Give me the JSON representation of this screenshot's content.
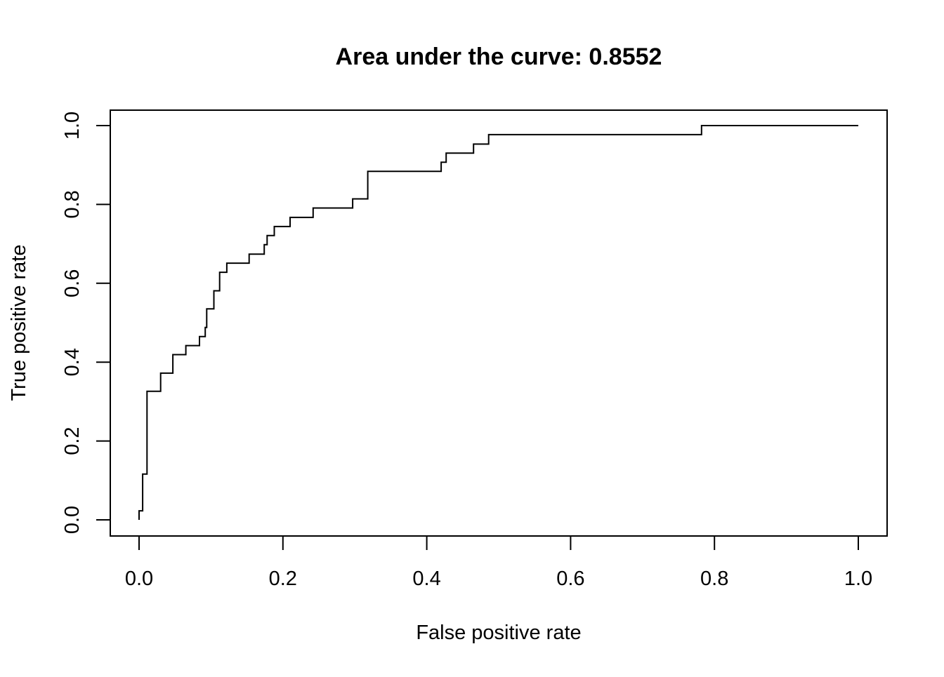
{
  "chart_data": {
    "type": "line",
    "title": "Area under the curve: 0.8552",
    "xlabel": "False positive rate",
    "ylabel": "True positive rate",
    "xlim": [
      0.0,
      1.0
    ],
    "ylim": [
      0.0,
      1.0
    ],
    "x_ticks": [
      "0.0",
      "0.2",
      "0.4",
      "0.6",
      "0.8",
      "1.0"
    ],
    "y_ticks": [
      "0.0",
      "0.2",
      "0.4",
      "0.6",
      "0.8",
      "1.0"
    ],
    "grid": false,
    "line_color": "#000000",
    "series": [
      {
        "step": true,
        "x": [
          0.0,
          0.0,
          0.003,
          0.003,
          0.005,
          0.005,
          0.011,
          0.011,
          0.03,
          0.03,
          0.047,
          0.047,
          0.065,
          0.065,
          0.084,
          0.084,
          0.092,
          0.092,
          0.094,
          0.094,
          0.104,
          0.104,
          0.112,
          0.112,
          0.122,
          0.122,
          0.153,
          0.153,
          0.174,
          0.174,
          0.178,
          0.178,
          0.188,
          0.188,
          0.21,
          0.21,
          0.242,
          0.242,
          0.297,
          0.297,
          0.318,
          0.318,
          0.42,
          0.42,
          0.427,
          0.427,
          0.465,
          0.465,
          0.486,
          0.486,
          0.782,
          0.782,
          1.0
        ],
        "y": [
          0.0,
          0.023,
          0.023,
          0.023,
          0.023,
          0.116,
          0.116,
          0.326,
          0.326,
          0.372,
          0.372,
          0.419,
          0.419,
          0.442,
          0.442,
          0.465,
          0.465,
          0.488,
          0.488,
          0.535,
          0.535,
          0.581,
          0.581,
          0.628,
          0.628,
          0.651,
          0.651,
          0.674,
          0.674,
          0.698,
          0.698,
          0.721,
          0.721,
          0.744,
          0.744,
          0.767,
          0.767,
          0.791,
          0.791,
          0.814,
          0.814,
          0.884,
          0.884,
          0.907,
          0.907,
          0.93,
          0.93,
          0.953,
          0.953,
          0.977,
          0.977,
          1.0,
          1.0
        ]
      }
    ]
  }
}
